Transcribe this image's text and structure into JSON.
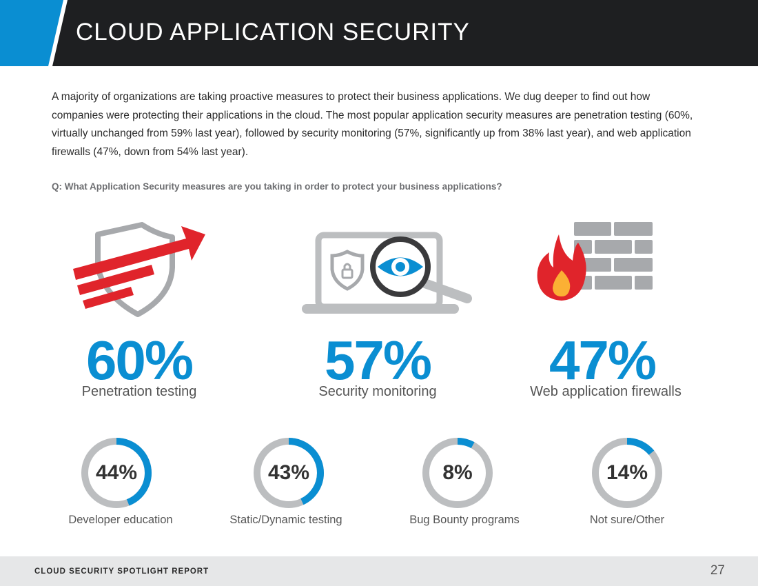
{
  "header": {
    "title": "CLOUD APPLICATION SECURITY"
  },
  "intro": "A majority of organizations are taking proactive measures to protect their business applications. We dug deeper to find out how companies were protecting their applications in the cloud. The most popular application security measures are penetration testing (60%, virtually unchanged from 59% last year), followed by security monitoring (57%, significantly up from 38% last year), and web application firewalls (47%, down from 54% last year).",
  "question": "Q: What Application Security measures are you taking in order to protect your business applications?",
  "colors": {
    "accent_blue": "#0a8ed2",
    "header_dark": "#1e1f21",
    "arrow_red": "#e0242b",
    "ring_gray": "#bcbec0"
  },
  "top_stats": [
    {
      "value": "60%",
      "label": "Penetration testing",
      "icon": "shield-arrow-icon"
    },
    {
      "value": "57%",
      "label": "Security monitoring",
      "icon": "laptop-eye-magnifier-icon"
    },
    {
      "value": "47%",
      "label": "Web application firewalls",
      "icon": "firewall-icon"
    }
  ],
  "chart_data": {
    "type": "pie",
    "categories": [
      "Developer education",
      "Static/Dynamic testing",
      "Bug Bounty programs",
      "Not sure/Other"
    ],
    "values": [
      44,
      43,
      8,
      14
    ],
    "labels": [
      "44%",
      "43%",
      "8%",
      "14%"
    ],
    "unit": "%"
  },
  "footer": {
    "report": "CLOUD SECURITY SPOTLIGHT REPORT",
    "page": "27"
  }
}
